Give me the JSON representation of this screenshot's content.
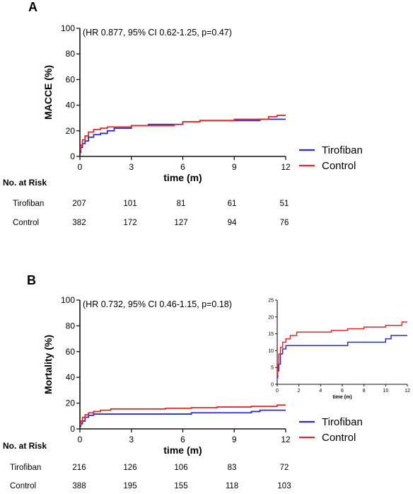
{
  "figure": {
    "panels": [
      {
        "letter": "A",
        "annotation": "(HR 0.877, 95% CI 0.62-1.25, p=0.47)",
        "legend": [
          "Tirofiban",
          "Control"
        ],
        "risk_table": {
          "title": "No. at Risk",
          "rows": [
            {
              "label": "Tirofiban",
              "values": [
                "207",
                "101",
                "81",
                "61",
                "51"
              ]
            },
            {
              "label": "Control",
              "values": [
                "382",
                "172",
                "127",
                "94",
                "76"
              ]
            }
          ]
        }
      },
      {
        "letter": "B",
        "annotation": "(HR 0.732, 95% CI 0.46-1.15, p=0.18)",
        "legend": [
          "Tirofiban",
          "Control"
        ],
        "risk_table": {
          "title": "No. at Risk",
          "rows": [
            {
              "label": "Tirofiban",
              "values": [
                "216",
                "126",
                "106",
                "83",
                "72"
              ]
            },
            {
              "label": "Control",
              "values": [
                "388",
                "195",
                "155",
                "118",
                "103"
              ]
            }
          ]
        }
      }
    ]
  },
  "chart_data": [
    {
      "type": "line",
      "step": true,
      "title": "",
      "xlabel": "time (m)",
      "ylabel": "MACCE (%)",
      "xlim": [
        0,
        12
      ],
      "ylim": [
        0,
        100
      ],
      "xticks": [
        "0",
        "3",
        "6",
        "9",
        "12"
      ],
      "yticks": [
        "0",
        "20",
        "40",
        "60",
        "80",
        "100"
      ],
      "legend_position": "right",
      "series": [
        {
          "name": "Tirofiban",
          "color": "#2b2bd6",
          "x": [
            0,
            0.05,
            0.15,
            0.3,
            0.5,
            0.8,
            1.2,
            1.6,
            2.0,
            3.0,
            4.0,
            5.5,
            6.0,
            7.0,
            8.0,
            9.0,
            10.5,
            12.0
          ],
          "y": [
            3,
            7,
            10,
            12,
            15,
            17,
            18,
            20,
            22,
            24,
            25,
            25,
            27,
            28,
            28,
            28,
            29,
            29
          ]
        },
        {
          "name": "Control",
          "color": "#e02a2a",
          "x": [
            0,
            0.05,
            0.15,
            0.3,
            0.5,
            0.8,
            1.2,
            1.6,
            2.0,
            3.0,
            4.0,
            5.5,
            6.0,
            7.0,
            8.0,
            9.0,
            10.0,
            11.0,
            11.5,
            12.0
          ],
          "y": [
            5,
            9,
            13,
            16,
            19,
            21,
            22,
            23,
            23,
            24,
            24,
            25,
            27,
            28,
            28,
            29,
            29,
            31,
            32,
            32
          ]
        }
      ]
    },
    {
      "type": "line",
      "step": true,
      "title": "",
      "xlabel": "time (m)",
      "ylabel": "Mortality (%)",
      "xlim": [
        0,
        12
      ],
      "ylim": [
        0,
        100
      ],
      "xticks": [
        "0",
        "3",
        "6",
        "9",
        "12"
      ],
      "yticks": [
        "0",
        "20",
        "40",
        "60",
        "80",
        "100"
      ],
      "legend_position": "right",
      "series": [
        {
          "name": "Tirofiban",
          "color": "#2b2bd6",
          "x": [
            0,
            0.05,
            0.15,
            0.3,
            0.5,
            0.8,
            2.0,
            6.5,
            10.0,
            10.5,
            12.0
          ],
          "y": [
            2,
            4,
            6,
            9,
            10.5,
            11.5,
            11.5,
            12.5,
            13.5,
            14.5,
            14.5
          ]
        },
        {
          "name": "Control",
          "color": "#e02a2a",
          "x": [
            0,
            0.05,
            0.15,
            0.3,
            0.5,
            0.8,
            1.2,
            1.8,
            3.0,
            5.0,
            6.5,
            8.0,
            10.0,
            11.5,
            12.0
          ],
          "y": [
            3,
            6,
            9,
            11,
            12.5,
            13.5,
            14.5,
            15.5,
            15.5,
            16,
            16.5,
            17,
            17.5,
            18.5,
            18.5
          ]
        }
      ],
      "inset": {
        "xlabel": "time (m)",
        "xlim": [
          0,
          12
        ],
        "ylim": [
          0,
          25
        ],
        "xticks": [
          "0",
          "2",
          "4",
          "6",
          "8",
          "10",
          "12"
        ],
        "yticks": [
          "0",
          "5",
          "10",
          "15",
          "20",
          "25"
        ]
      }
    }
  ]
}
